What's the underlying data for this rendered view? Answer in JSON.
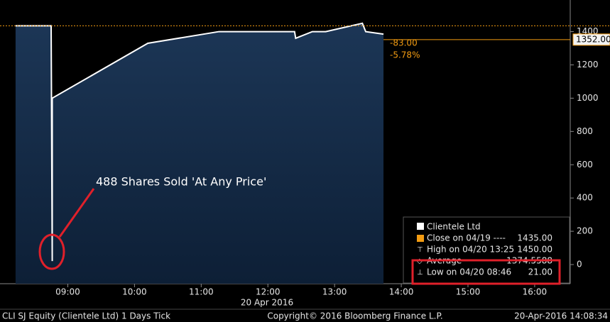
{
  "chart_data": {
    "type": "area",
    "annotation": "488 Shares Sold 'At Any Price'",
    "date_label": "20 Apr 2016",
    "x": [
      "08:13",
      "08:45",
      "08:46",
      "08:46",
      "10:12",
      "11:16",
      "12:24",
      "12:25",
      "12:40",
      "12:52",
      "13:25",
      "13:28",
      "13:44"
    ],
    "series": [
      {
        "name": "Clientele Ltd",
        "color": "#ffffff",
        "values": [
          1435,
          1435,
          21,
          1000,
          1330,
          1400,
          1400,
          1360,
          1400,
          1400,
          1450,
          1400,
          1385
        ]
      }
    ],
    "xlim": [
      "07:59",
      "16:32"
    ],
    "xticks": [
      "09:00",
      "10:00",
      "11:00",
      "12:00",
      "13:00",
      "14:00",
      "15:00",
      "16:00"
    ],
    "ylim": [
      -115,
      1590
    ],
    "yticks": [
      0,
      200,
      400,
      600,
      800,
      1000,
      1200,
      1400
    ],
    "last": {
      "value": 1352,
      "label": "1352.00"
    },
    "change": {
      "value": -83,
      "label": "-83.00"
    },
    "change_pct": {
      "value": -5.78,
      "label": "-5.78%"
    },
    "stats": [
      {
        "label": "Close on 04/19 ----",
        "value": 1435,
        "value_label": "1435.00",
        "color": "#f39c12"
      },
      {
        "label": "High on 04/20 13:25",
        "value": 1450,
        "value_label": "1450.00"
      },
      {
        "label": "Average",
        "value": 1374.5588,
        "value_label": "1374.5588"
      },
      {
        "label": "Low on 04/20 08:46",
        "value": 21,
        "value_label": "21.00"
      }
    ],
    "footer": {
      "left": "CLI SJ Equity (Clientele Ltd) 1 Days  Tick",
      "center": "Copyright© 2016 Bloomberg Finance L.P.",
      "right": "20-Apr-2016 14:08:34"
    }
  }
}
